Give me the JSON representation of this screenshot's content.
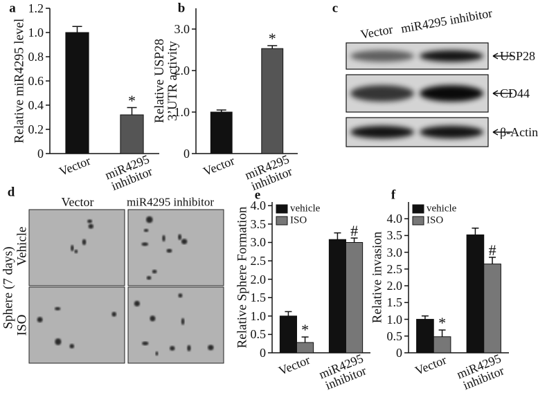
{
  "chart_data": [
    {
      "type": "bar",
      "label": "a",
      "ylabel": "Relative miR4295 level",
      "categories": [
        "Vector",
        "miR4295 inhibitor"
      ],
      "values": [
        1.0,
        0.32
      ],
      "errors": [
        0.05,
        0.06
      ],
      "colors": [
        "#111111",
        "#555555"
      ],
      "annotations": [
        null,
        "*"
      ],
      "ylim": [
        0,
        1.2
      ],
      "yticks": [
        0,
        0.2,
        0.4,
        0.6,
        0.8,
        {
          "value": 1,
          "label": "1.0"
        },
        1.2
      ]
    },
    {
      "type": "bar",
      "label": "b",
      "ylabel": "Relative USP28 3’UTR activity",
      "categories": [
        "Vector",
        "miR4295 inhibitor"
      ],
      "values": [
        1.0,
        2.53
      ],
      "errors": [
        0.05,
        0.07
      ],
      "colors": [
        "#111111",
        "#555555"
      ],
      "annotations": [
        null,
        "*"
      ],
      "ylim": [
        0,
        3.5
      ],
      "yticks": [
        0,
        {
          "value": 1,
          "label": "1.0"
        },
        {
          "value": 2,
          "label": "2.0"
        },
        {
          "value": 3,
          "label": "3.0"
        }
      ]
    },
    {
      "type": "bar",
      "label": "e",
      "ylabel": "Relative Sphere Formation",
      "categories": [
        "Vector",
        "miR4295 inhibitor"
      ],
      "legend": "top-left",
      "series": [
        {
          "name": "vehicle",
          "color": "#111111",
          "values": [
            1.0,
            3.08
          ],
          "errors": [
            0.12,
            0.18
          ],
          "annotations": [
            null,
            null
          ]
        },
        {
          "name": "ISO",
          "color": "#777777",
          "values": [
            0.28,
            3.0
          ],
          "errors": [
            0.15,
            0.12
          ],
          "annotations": [
            "*",
            "#"
          ]
        }
      ],
      "ylim": [
        0,
        4.1
      ],
      "yticks": [
        0,
        0.5,
        {
          "value": 1,
          "label": "1.0"
        },
        1.5,
        {
          "value": 2,
          "label": "2.0"
        },
        2.5,
        {
          "value": 3,
          "label": "3.0"
        },
        3.5,
        {
          "value": 4,
          "label": "4.0"
        }
      ]
    },
    {
      "type": "bar",
      "label": "f",
      "ylabel": "Relative invasion",
      "categories": [
        "Vector",
        "miR4295 inhibitor"
      ],
      "legend": "top-left",
      "series": [
        {
          "name": "vehicle",
          "color": "#111111",
          "values": [
            1.0,
            3.52
          ],
          "errors": [
            0.1,
            0.2
          ],
          "annotations": [
            null,
            null
          ]
        },
        {
          "name": "ISO",
          "color": "#777777",
          "values": [
            0.48,
            2.65
          ],
          "errors": [
            0.2,
            0.2
          ],
          "annotations": [
            "*",
            "#"
          ]
        }
      ],
      "ylim": [
        0,
        4.5
      ],
      "yticks": [
        0,
        0.5,
        {
          "value": 1,
          "label": "1.0"
        },
        1.5,
        {
          "value": 2,
          "label": "2.0"
        },
        2.5,
        {
          "value": 3,
          "label": "3.0"
        },
        3.5,
        {
          "value": 4,
          "label": "4.0"
        }
      ]
    }
  ],
  "blot": {
    "label": "c",
    "lanes": [
      "Vector",
      "miR4295 inhibitor"
    ],
    "bands": [
      "USP28",
      "CD44",
      "β-Actin"
    ]
  },
  "images": {
    "label": "d",
    "columns": [
      "Vector",
      "miR4295  inhibitor"
    ],
    "row_title": "Sphere (7 days)",
    "rows": [
      "Vehicle",
      "ISO"
    ]
  }
}
